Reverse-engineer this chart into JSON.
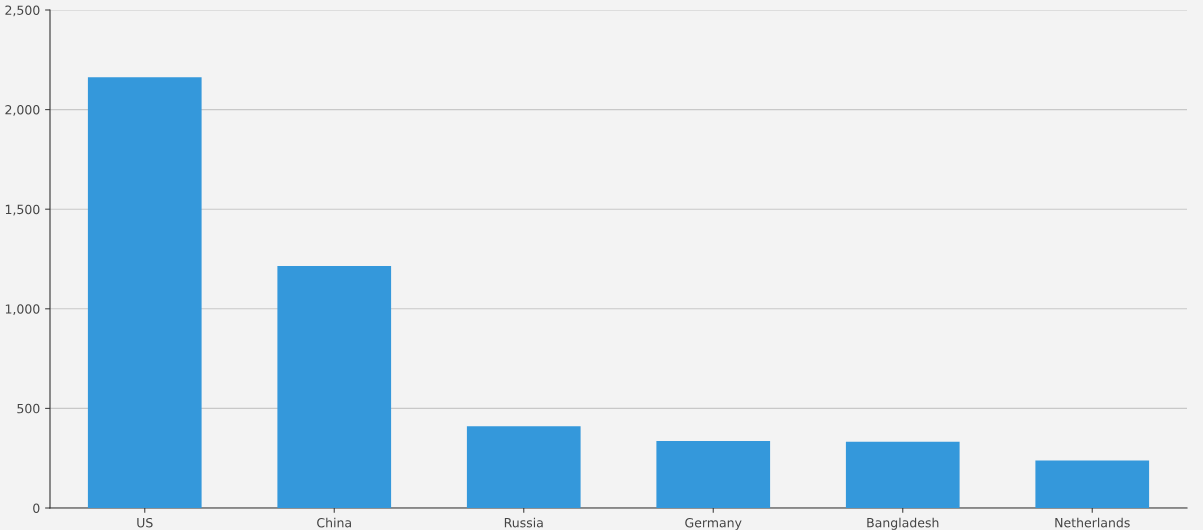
{
  "chart_data": {
    "type": "bar",
    "categories": [
      "US",
      "China",
      "Russia",
      "Germany",
      "Bangladesh",
      "Netherlands"
    ],
    "values": [
      2163,
      1215,
      410,
      336,
      333,
      238
    ],
    "color": "#3498db",
    "ylim": [
      0,
      2500
    ],
    "yticks": [
      {
        "value": 0,
        "label": "0"
      },
      {
        "value": 500,
        "label": "500"
      },
      {
        "value": 1000,
        "label": "1,000"
      },
      {
        "value": 1500,
        "label": "1,500"
      },
      {
        "value": 2000,
        "label": "2,000"
      },
      {
        "value": 2500,
        "label": "2,500"
      }
    ],
    "grid": "y"
  }
}
